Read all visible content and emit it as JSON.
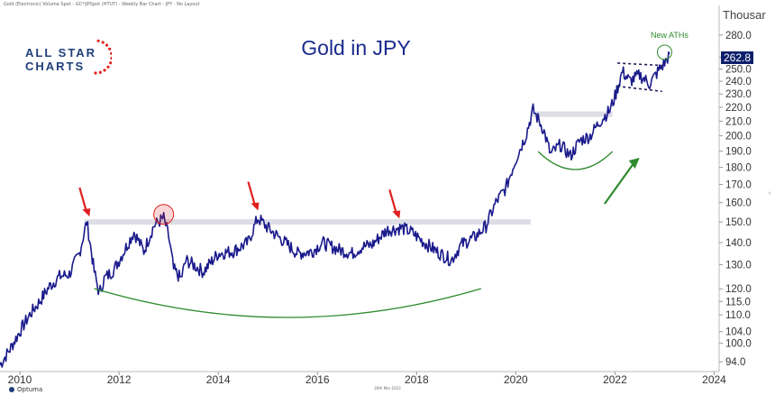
{
  "header": {
    "info_line": "Gold (Electronic) Volume Spot - GC*/JPSpot (HTUT) - Weekly Bar Chart - JPY - No Layout"
  },
  "logo": {
    "line1": "ALL STAR",
    "line2": "CHARTS"
  },
  "footer": {
    "credit": "Optuma",
    "date": "20th Mar 2023"
  },
  "colors": {
    "price_line": "#1a1a8c",
    "title": "#1a2a8c",
    "arrow_red": "#e02020",
    "arc_green": "#2e8b2e",
    "resistance_band": "#d9d9e3",
    "price_tag_bg": "#0d1f6b",
    "logo_blue": "#1f3f7a",
    "logo_star_red": "#e02020"
  },
  "chart_data": {
    "type": "line",
    "title": "Gold in JPY",
    "unit_label": "Thousar",
    "y_scale": "log",
    "ylim": [
      91,
      300
    ],
    "xlim": [
      2009.6,
      2024.1
    ],
    "yticks": [
      94.0,
      100.0,
      104.0,
      110.0,
      115.0,
      120.0,
      130.0,
      140.0,
      150.0,
      160.0,
      170.0,
      180.0,
      190.0,
      200.0,
      210.0,
      220.0,
      230.0,
      240.0,
      250.0,
      260.0,
      280.0
    ],
    "ytick_labels": [
      "94.0",
      "100.0",
      "104.0",
      "110.0",
      "115.0",
      "120.0",
      "130.0",
      "140.0",
      "150.0",
      "160.0",
      "170.0",
      "180.0",
      "190.0",
      "200.0",
      "210.0",
      "220.0",
      "230.0",
      "240.0",
      "250.0",
      "260.0",
      "280.0"
    ],
    "xticks": [
      2010,
      2012,
      2014,
      2016,
      2018,
      2020,
      2022,
      2024
    ],
    "xtick_labels": [
      "2010",
      "2012",
      "2014",
      "2016",
      "2018",
      "2020",
      "2022",
      "2024"
    ],
    "grid": false,
    "last_price": 262.8,
    "last_price_label": "262.8",
    "series": [
      {
        "x": [
          2009.6,
          2009.8,
          2010.0,
          2010.2,
          2010.4,
          2010.6,
          2010.8,
          2011.0,
          2011.2,
          2011.35,
          2011.5,
          2011.6,
          2011.7,
          2011.9,
          2012.1,
          2012.3,
          2012.5,
          2012.7,
          2012.9,
          2013.0,
          2013.1,
          2013.25,
          2013.35,
          2013.5,
          2013.7,
          2014.0,
          2014.3,
          2014.6,
          2014.8,
          2015.0,
          2015.3,
          2015.6,
          2015.9,
          2016.1,
          2016.4,
          2016.7,
          2016.9,
          2017.1,
          2017.4,
          2017.7,
          2017.9,
          2018.1,
          2018.4,
          2018.7,
          2018.9,
          2019.2,
          2019.4,
          2019.6,
          2019.8,
          2020.0,
          2020.2,
          2020.35,
          2020.55,
          2020.7,
          2020.9,
          2021.1,
          2021.3,
          2021.5,
          2021.7,
          2021.9,
          2022.0,
          2022.15,
          2022.3,
          2022.5,
          2022.7,
          2022.9,
          2023.0,
          2023.1
        ],
        "values": [
          93,
          98,
          104,
          110,
          115,
          121,
          125,
          126,
          135,
          150,
          127,
          118,
          124,
          128,
          136,
          145,
          136,
          148,
          152,
          143,
          128,
          124,
          132,
          130,
          127,
          135,
          136,
          140,
          152,
          147,
          141,
          135,
          136,
          140,
          137,
          135,
          138,
          139,
          146,
          147,
          145,
          141,
          136,
          132,
          139,
          143,
          148,
          160,
          168,
          185,
          200,
          218,
          205,
          188,
          194,
          187,
          197,
          200,
          210,
          218,
          228,
          248,
          240,
          245,
          238,
          250,
          255,
          262.8
        ]
      }
    ],
    "annotations": [
      {
        "type": "arrow_down",
        "x": 2011.35,
        "y": 150,
        "color": "red"
      },
      {
        "type": "arrow_down",
        "x": 2014.75,
        "y": 153,
        "color": "red"
      },
      {
        "type": "arrow_down",
        "x": 2017.6,
        "y": 149,
        "color": "red"
      },
      {
        "type": "circle",
        "x": 2012.9,
        "y": 152,
        "color": "red"
      },
      {
        "type": "resistance_band",
        "x_from": 2011.3,
        "x_to": 2020.3,
        "y": 150
      },
      {
        "type": "resistance_band",
        "x_from": 2020.3,
        "x_to": 2021.95,
        "y": 215
      },
      {
        "type": "base_arc",
        "x_from": 2011.5,
        "x_to": 2019.3,
        "color": "green"
      },
      {
        "type": "base_arc",
        "x_from": 2020.45,
        "x_to": 2021.95,
        "color": "green"
      },
      {
        "type": "arrow_up",
        "x_from": 2021.5,
        "x_to": 2022.55,
        "color": "green"
      },
      {
        "type": "flag",
        "x_from": 2022.05,
        "x_to": 2022.95,
        "top_from": 255,
        "top_to": 253,
        "bottom_from": 236,
        "bottom_to": 232
      },
      {
        "type": "circle",
        "x": 2023.0,
        "y": 262.8,
        "color": "green",
        "label": "New ATHs"
      }
    ]
  }
}
